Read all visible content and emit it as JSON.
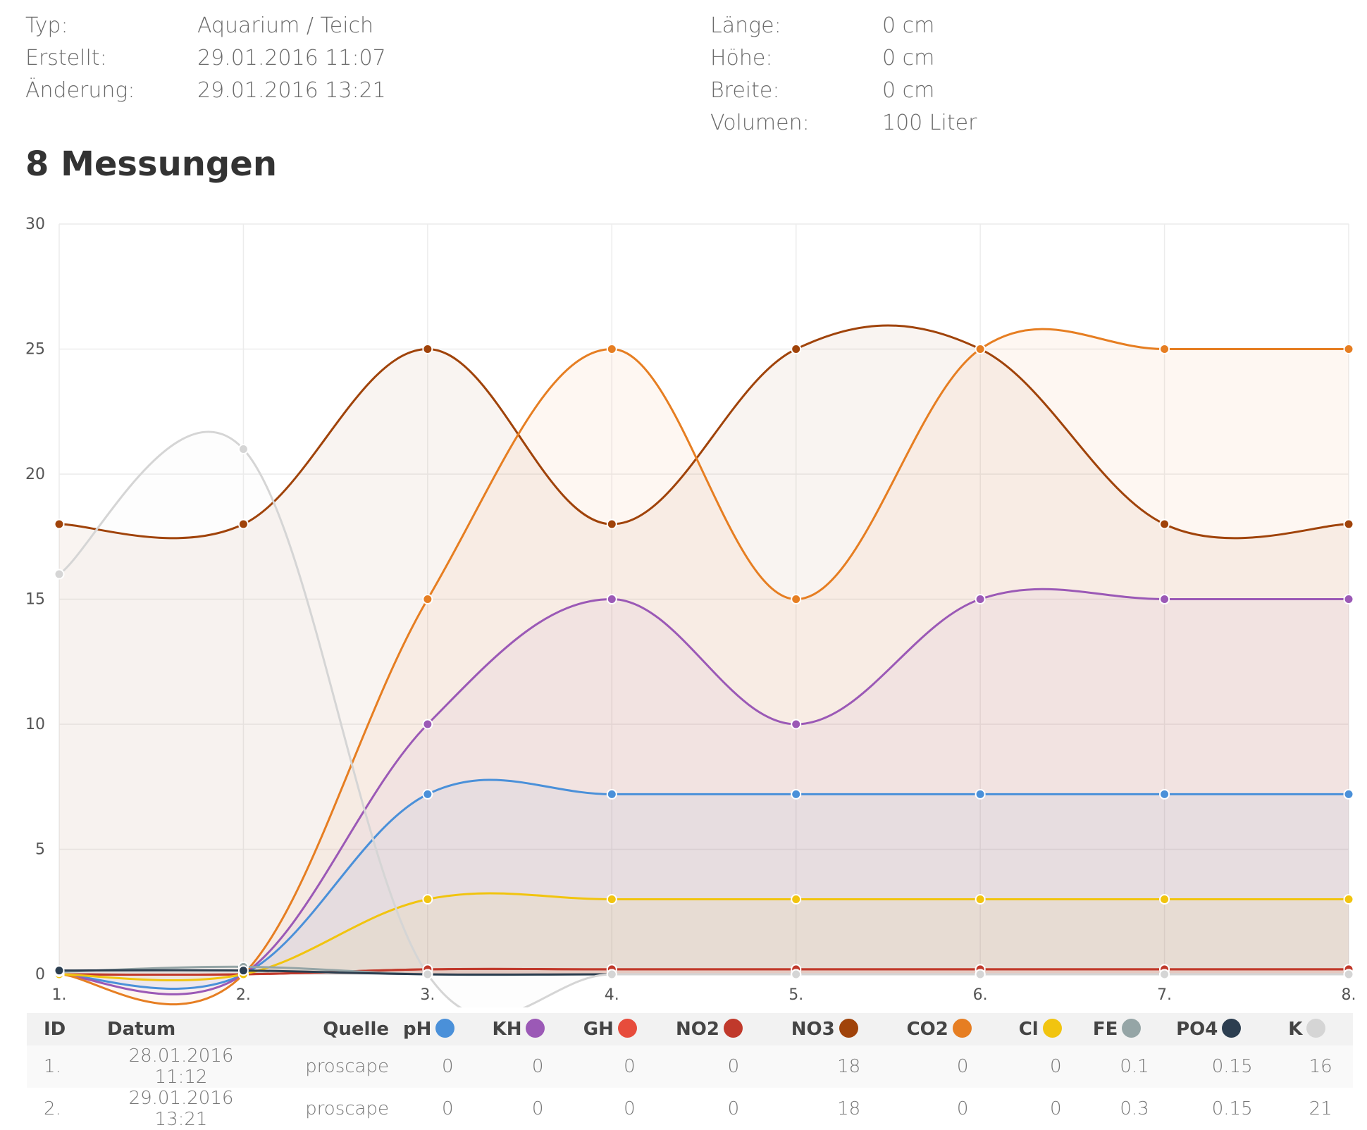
{
  "info": {
    "left": [
      {
        "k": "Typ:",
        "v": "Aquarium / Teich"
      },
      {
        "k": "Erstellt:",
        "v": "29.01.2016 11:07"
      },
      {
        "k": "Änderung:",
        "v": "29.01.2016 13:21"
      }
    ],
    "right": [
      {
        "k": "Länge:",
        "v": "0 cm"
      },
      {
        "k": "Höhe:",
        "v": "0 cm"
      },
      {
        "k": "Breite:",
        "v": "0 cm"
      },
      {
        "k": "Volumen:",
        "v": "100 Liter"
      }
    ]
  },
  "heading": "8 Messungen",
  "chart_data": {
    "type": "line",
    "categories": [
      "1.",
      "2.",
      "3.",
      "4.",
      "5.",
      "6.",
      "7.",
      "8."
    ],
    "ylim": [
      0,
      30
    ],
    "yticks": [
      0,
      5,
      10,
      15,
      20,
      25,
      30
    ],
    "grid": true,
    "series": [
      {
        "name": "pH",
        "color": "#4a90d9",
        "values": [
          0,
          0,
          7.2,
          7.2,
          7.2,
          7.2,
          7.2,
          7.2
        ]
      },
      {
        "name": "KH",
        "color": "#9b59b6",
        "values": [
          0,
          0,
          10,
          15,
          10,
          15,
          15,
          15
        ]
      },
      {
        "name": "GH",
        "color": "#e74c3c",
        "values": [
          0,
          0,
          0.2,
          0.2,
          0.2,
          0.2,
          0.2,
          0.2
        ]
      },
      {
        "name": "NO2",
        "color": "#c0392b",
        "values": [
          0,
          0,
          0.2,
          0.2,
          0.2,
          0.2,
          0.2,
          0.2
        ]
      },
      {
        "name": "NO3",
        "color": "#a0430a",
        "values": [
          18,
          18,
          25,
          18,
          25,
          25,
          18,
          18
        ]
      },
      {
        "name": "CO2",
        "color": "#e67e22",
        "values": [
          0,
          0,
          15,
          25,
          15,
          25,
          25,
          25
        ]
      },
      {
        "name": "Cl",
        "color": "#f1c40f",
        "values": [
          0,
          0,
          3,
          3,
          3,
          3,
          3,
          3
        ]
      },
      {
        "name": "FE",
        "color": "#95a5a6",
        "values": [
          0.1,
          0.3,
          0,
          0,
          0,
          0,
          0,
          0
        ]
      },
      {
        "name": "PO4",
        "color": "#2c3e50",
        "values": [
          0.15,
          0.15,
          0,
          0,
          0,
          0,
          0,
          0
        ]
      },
      {
        "name": "K",
        "color": "#d5d5d5",
        "values": [
          16,
          21,
          0,
          0,
          0,
          0,
          0,
          0
        ]
      }
    ]
  },
  "table": {
    "headers": {
      "id": "ID",
      "datum": "Datum",
      "quelle": "Quelle"
    },
    "rows": [
      {
        "id": "1.",
        "datum": "28.01.2016 11:12",
        "quelle": "proscape",
        "vals": [
          "0",
          "0",
          "0",
          "0",
          "18",
          "0",
          "0",
          "0.1",
          "0.15",
          "16"
        ]
      },
      {
        "id": "2.",
        "datum": "29.01.2016 13:21",
        "quelle": "proscape",
        "vals": [
          "0",
          "0",
          "0",
          "0",
          "18",
          "0",
          "0",
          "0.3",
          "0.15",
          "21"
        ]
      }
    ]
  }
}
